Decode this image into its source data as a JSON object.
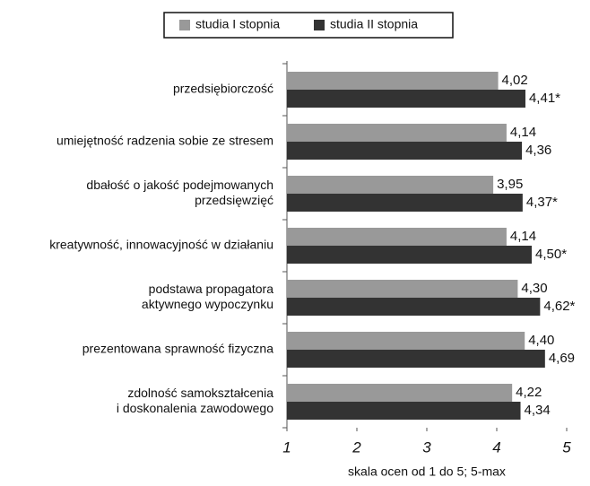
{
  "chart_data": {
    "type": "bar",
    "orientation": "horizontal",
    "categories": [
      [
        "przedsiębiorczość"
      ],
      [
        "umiejętność radzenia sobie ze stresem"
      ],
      [
        "dbałość o jakość podejmowanych",
        "przedsięwzięć"
      ],
      [
        "kreatywność, innowacyjność w działaniu"
      ],
      [
        "podstawa propagatora",
        "aktywnego wypoczynku"
      ],
      [
        "prezentowana sprawność fizyczna"
      ],
      [
        "zdolność samokształcenia",
        "i doskonalenia zawodowego"
      ]
    ],
    "series": [
      {
        "name": "studia I stopnia",
        "color": "#999999",
        "values": [
          4.02,
          4.14,
          3.95,
          4.14,
          4.3,
          4.4,
          4.22
        ],
        "value_labels": [
          "4,02",
          "4,14",
          "3,95",
          "4,14",
          "4,30",
          "4,40",
          "4,22"
        ]
      },
      {
        "name": "studia II stopnia",
        "color": "#333333",
        "values": [
          4.41,
          4.36,
          4.37,
          4.5,
          4.62,
          4.69,
          4.34
        ],
        "value_labels": [
          "4,41*",
          "4,36",
          "4,37*",
          "4,50*",
          "4,62*",
          "4,69",
          "4,34"
        ]
      }
    ],
    "xlabel": "skala ocen od 1 do 5; 5-max",
    "xlim": [
      1,
      5
    ],
    "xticks": [
      1,
      2,
      3,
      4,
      5
    ],
    "legend": "top"
  }
}
